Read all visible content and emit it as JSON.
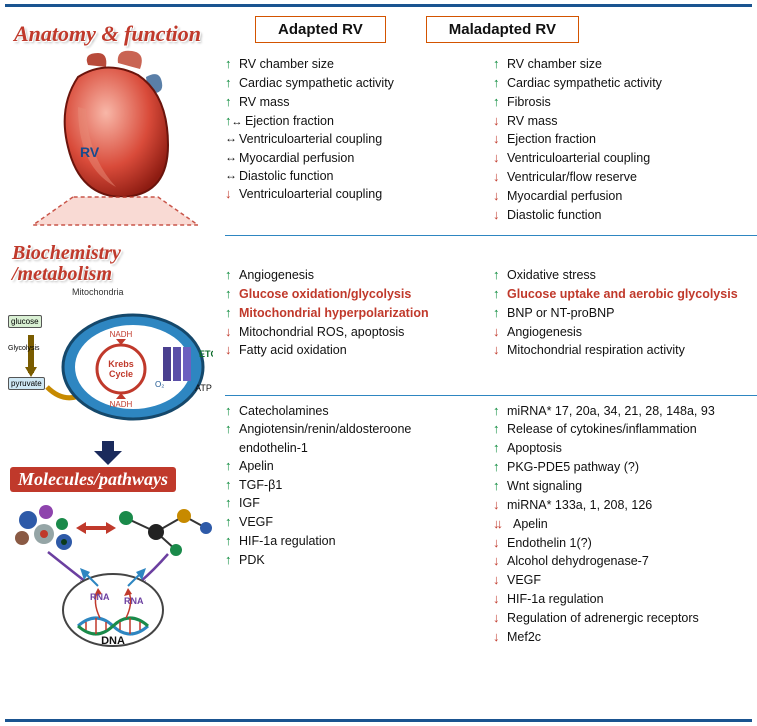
{
  "colors": {
    "rule": "#1a5490",
    "header_border": "#d35400",
    "up": "#0b8a3a",
    "down": "#c0392b",
    "red_text": "#c0392b",
    "title_red": "#c0392b",
    "section_divider": "#2e86c1"
  },
  "left_titles": {
    "anatomy": "Anatomy & function",
    "biochem": "Biochemistry /metabolism",
    "molecules": "Molecules/pathways"
  },
  "headers": {
    "adapted": "Adapted RV",
    "maladapted": "Maladapted RV"
  },
  "heart_label": "RV",
  "mito": {
    "label": "Mitochondria",
    "glucose": "glucose",
    "glycolysis": "Glycolysis",
    "pyruvate": "pyruvate",
    "krebs": "Krebs Cycle",
    "nadh1": "NADH",
    "nadh2": "NADH",
    "etc": "ETC",
    "atp": "ATP",
    "o2": "O₂"
  },
  "rna": {
    "rna1": "RNA",
    "rna2": "RNA",
    "dna": "DNA"
  },
  "anat_adapted": [
    {
      "a": "up",
      "t": "RV chamber size"
    },
    {
      "a": "up",
      "t": "Cardiac sympathetic activity"
    },
    {
      "a": "up",
      "t": "RV mass"
    },
    {
      "a": "upbi",
      "t": "Ejection fraction"
    },
    {
      "a": "bi",
      "t": "Ventriculoarterial coupling"
    },
    {
      "a": "bi",
      "t": "Myocardial perfusion"
    },
    {
      "a": "bi",
      "t": "Diastolic function"
    },
    {
      "a": "down",
      "t": "Ventriculoarterial coupling"
    }
  ],
  "anat_mal": [
    {
      "a": "up",
      "t": "RV chamber size"
    },
    {
      "a": "up",
      "t": "Cardiac sympathetic activity"
    },
    {
      "a": "up",
      "t": "Fibrosis"
    },
    {
      "a": "down",
      "t": "RV mass"
    },
    {
      "a": "down",
      "t": "Ejection fraction"
    },
    {
      "a": "down",
      "t": "Ventriculoarterial coupling"
    },
    {
      "a": "down",
      "t": "Ventricular/flow reserve"
    },
    {
      "a": "down",
      "t": "Myocardial perfusion"
    },
    {
      "a": "down",
      "t": "Diastolic function"
    }
  ],
  "bio_adapted": [
    {
      "a": "up",
      "t": "Angiogenesis"
    },
    {
      "a": "up",
      "t": "Glucose oxidation/glycolysis",
      "red": true
    },
    {
      "a": "up",
      "t": "Mitochondrial hyperpolarization",
      "red": true
    },
    {
      "a": "down",
      "t": "Mitochondrial ROS, apoptosis"
    },
    {
      "a": "down",
      "t": "Fatty acid oxidation"
    }
  ],
  "bio_mal": [
    {
      "a": "up",
      "t": "Oxidative stress"
    },
    {
      "a": "up",
      "t": "Glucose uptake and aerobic glycolysis",
      "red": true
    },
    {
      "a": "up",
      "t": "BNP or NT-proBNP"
    },
    {
      "a": "down",
      "t": "Angiogenesis"
    },
    {
      "a": "down",
      "t": "Mitochondrial respiration activity"
    }
  ],
  "mol_adapted": [
    {
      "a": "up",
      "t": "Catecholamines"
    },
    {
      "a": "up",
      "t": "Angiotensin/renin/aldosteroone endothelin-1"
    },
    {
      "a": "up",
      "t": "Apelin"
    },
    {
      "a": "up",
      "t": "TGF-β1"
    },
    {
      "a": "up",
      "t": "IGF"
    },
    {
      "a": "up",
      "t": "VEGF"
    },
    {
      "a": "up",
      "t": "HIF-1a regulation"
    },
    {
      "a": "up",
      "t": "PDK"
    }
  ],
  "mol_mal": [
    {
      "a": "up",
      "t": "miRNA* 17, 20a, 34, 21, 28, 148a, 93"
    },
    {
      "a": "up",
      "t": "Release of cytokines/inflammation"
    },
    {
      "a": "up",
      "t": "Apoptosis"
    },
    {
      "a": "up",
      "t": "PKG-PDE5 pathway (?)"
    },
    {
      "a": "up",
      "t": "Wnt signaling"
    },
    {
      "a": "down",
      "t": "miRNA* 133a, 1, 208, 126"
    },
    {
      "a": "dd",
      "t": "Apelin"
    },
    {
      "a": "down",
      "t": "Endothelin 1(?)"
    },
    {
      "a": "down",
      "t": "Alcohol dehydrogenase-7"
    },
    {
      "a": "down",
      "t": "VEGF"
    },
    {
      "a": "down",
      "t": "HIF-1a regulation"
    },
    {
      "a": "down",
      "t": "Regulation of adrenergic receptors"
    },
    {
      "a": "down",
      "t": "Mef2c"
    }
  ]
}
